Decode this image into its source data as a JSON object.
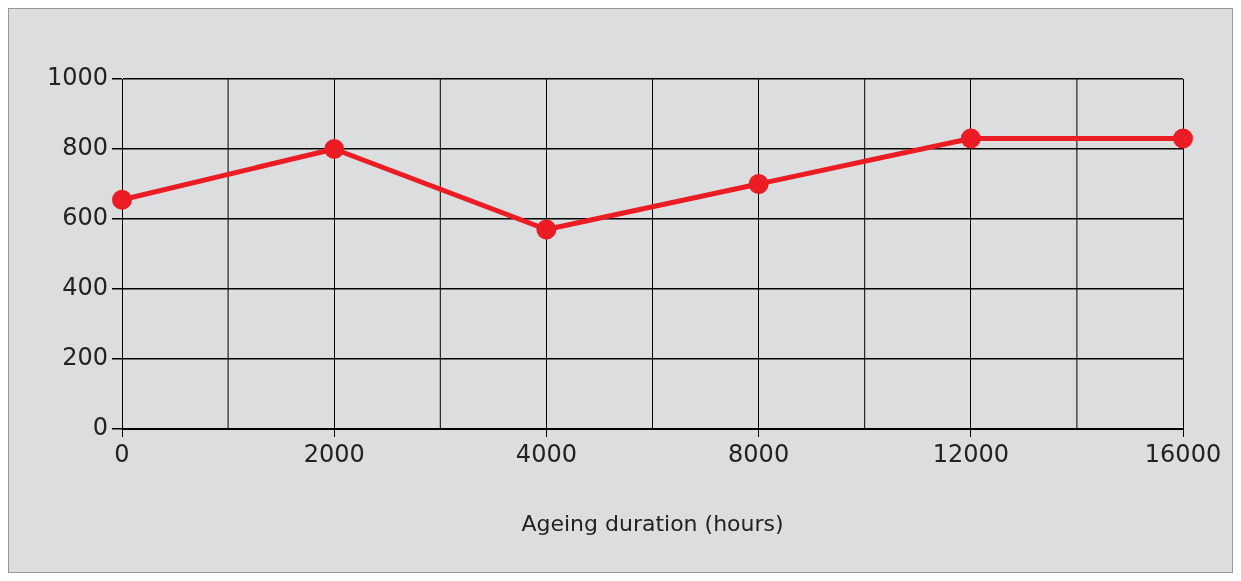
{
  "chart_data": {
    "type": "line",
    "xlabel": "Ageing duration (hours)",
    "categories": [
      "0",
      "2000",
      "4000",
      "8000",
      "12000",
      "16000"
    ],
    "series": [
      {
        "color": "#ec1c24",
        "values": [
          655,
          800,
          570,
          700,
          830,
          830
        ]
      }
    ],
    "ylim": [
      0,
      1000
    ],
    "yticks": [
      0,
      200,
      400,
      600,
      800,
      1000
    ],
    "grid": true,
    "legend": false,
    "marker": "circle",
    "line_style": "solid"
  }
}
